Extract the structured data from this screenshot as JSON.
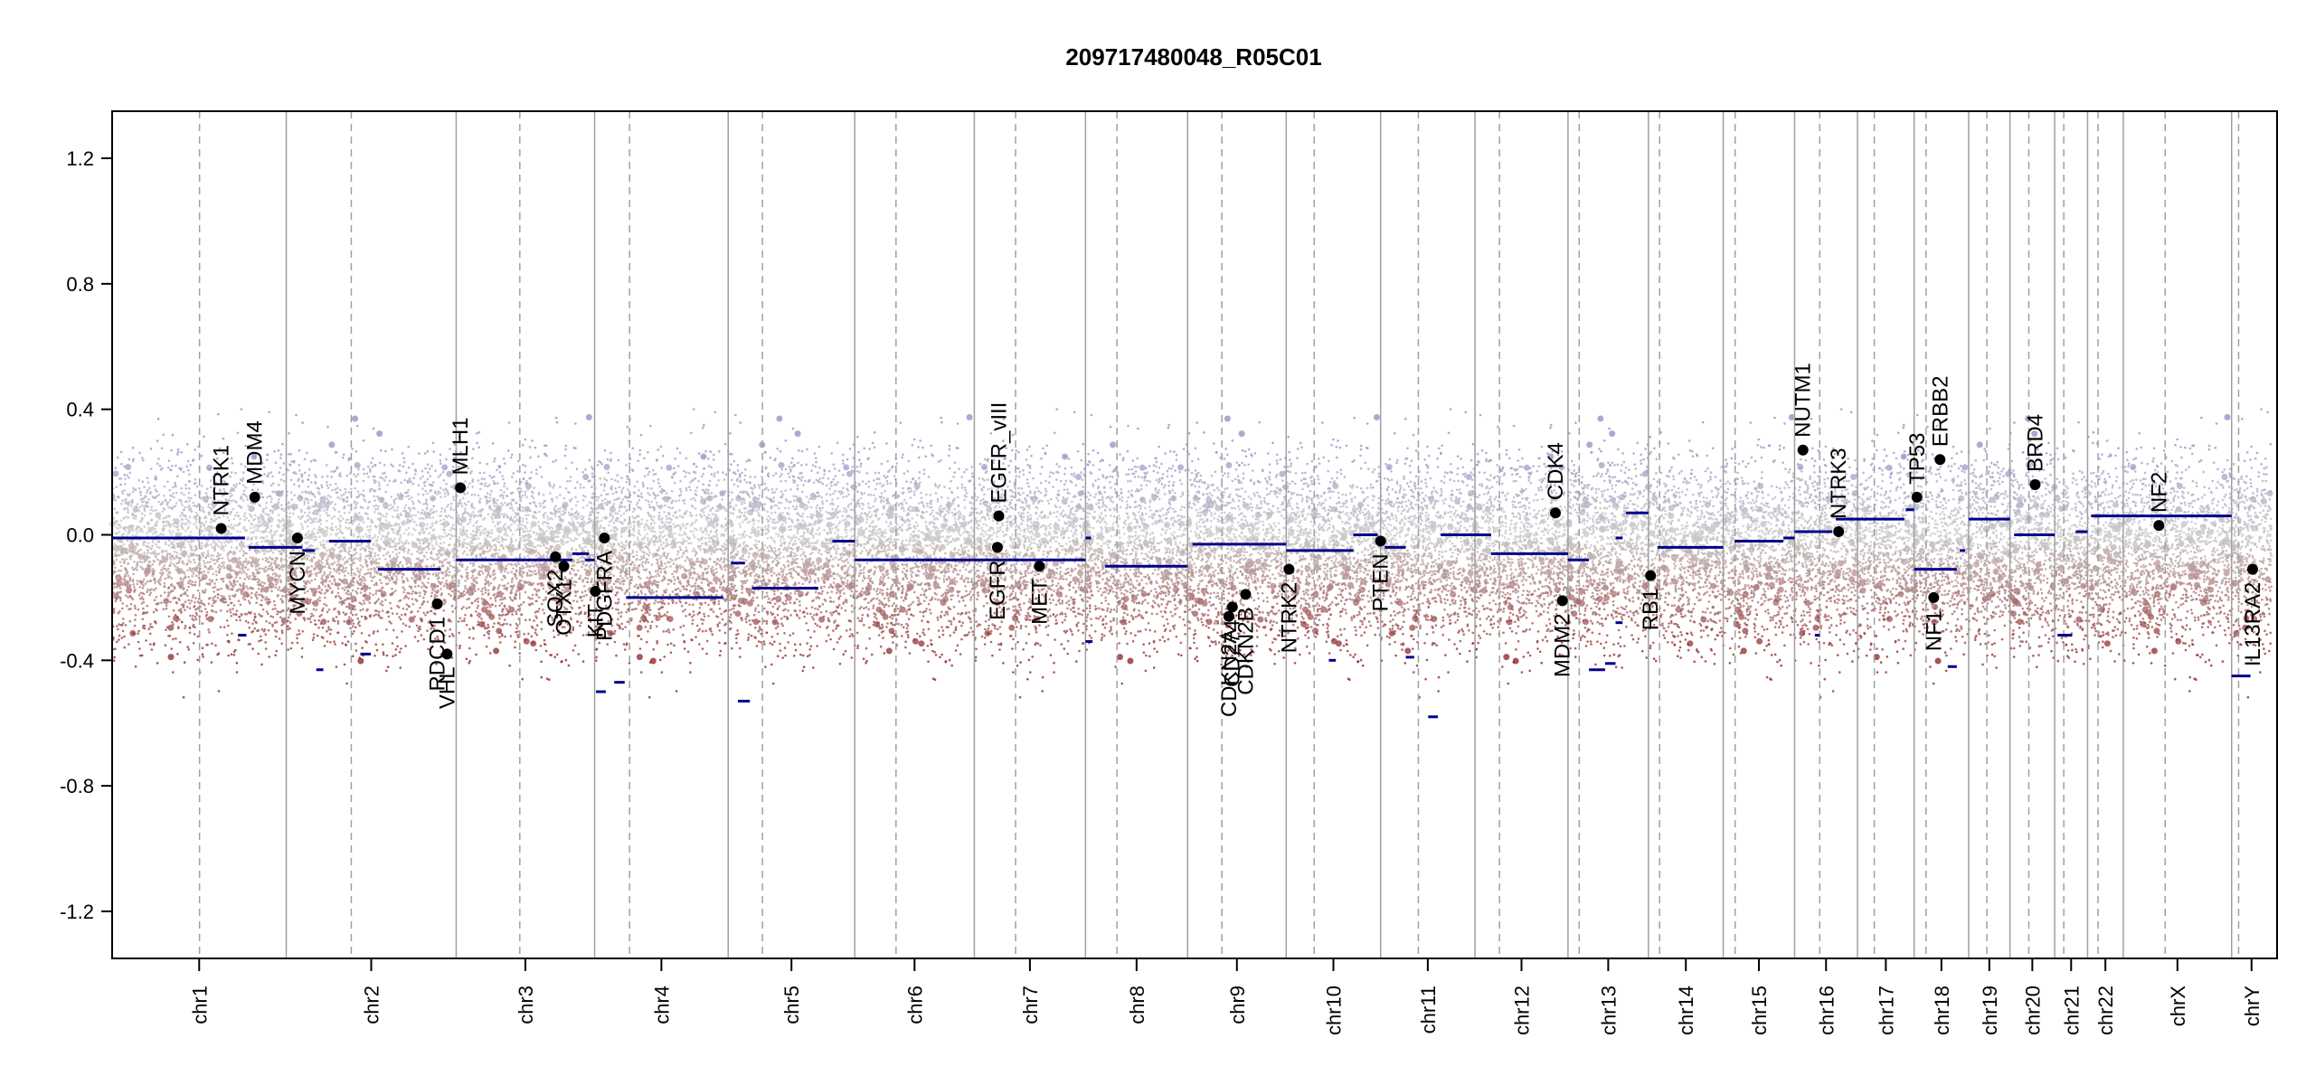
{
  "chart_data": {
    "type": "scatter",
    "title": "209717480048_R05C01",
    "xlabel": "",
    "ylabel": "",
    "ylim": [
      -1.35,
      1.35
    ],
    "yticks": [
      1.2,
      0.8,
      0.4,
      0.0,
      -0.4,
      -0.8,
      -1.2
    ],
    "ytick_labels": [
      "1.2",
      "0.8",
      "0.4",
      "0.0",
      "-0.4",
      "-0.8",
      "-1.2"
    ],
    "xlim": [
      0,
      3096
    ],
    "colors": {
      "gain": "#8c8cc4",
      "neutral": "#c8c8c8",
      "loss": "#8b1a1a",
      "segment": "#00008b",
      "marker": "#000000",
      "boundary": "#a0a0a0"
    },
    "chromosomes": [
      {
        "name": "chr1",
        "start": 0,
        "end": 249,
        "centromere": 125
      },
      {
        "name": "chr2",
        "start": 249,
        "end": 492,
        "centromere": 342
      },
      {
        "name": "chr3",
        "start": 492,
        "end": 690,
        "centromere": 583
      },
      {
        "name": "chr4",
        "start": 690,
        "end": 881,
        "centromere": 740
      },
      {
        "name": "chr5",
        "start": 881,
        "end": 1062,
        "centromere": 930
      },
      {
        "name": "chr6",
        "start": 1062,
        "end": 1233,
        "centromere": 1121
      },
      {
        "name": "chr7",
        "start": 1233,
        "end": 1392,
        "centromere": 1292
      },
      {
        "name": "chr8",
        "start": 1392,
        "end": 1538,
        "centromere": 1437
      },
      {
        "name": "chr9",
        "start": 1538,
        "end": 1679,
        "centromere": 1587
      },
      {
        "name": "chr10",
        "start": 1679,
        "end": 1814,
        "centromere": 1719
      },
      {
        "name": "chr11",
        "start": 1814,
        "end": 1949,
        "centromere": 1868
      },
      {
        "name": "chr12",
        "start": 1949,
        "end": 2082,
        "centromere": 1984
      },
      {
        "name": "chr13",
        "start": 2082,
        "end": 2197,
        "centromere": 2098
      },
      {
        "name": "chr14",
        "start": 2197,
        "end": 2304,
        "centromere": 2213
      },
      {
        "name": "chr15",
        "start": 2304,
        "end": 2406,
        "centromere": 2321
      },
      {
        "name": "chr16",
        "start": 2406,
        "end": 2496,
        "centromere": 2442
      },
      {
        "name": "chr17",
        "start": 2496,
        "end": 2577,
        "centromere": 2520
      },
      {
        "name": "chr18",
        "start": 2577,
        "end": 2655,
        "centromere": 2594
      },
      {
        "name": "chr19",
        "start": 2655,
        "end": 2714,
        "centromere": 2681
      },
      {
        "name": "chr20",
        "start": 2714,
        "end": 2778,
        "centromere": 2741
      },
      {
        "name": "chr21",
        "start": 2778,
        "end": 2825,
        "centromere": 2791
      },
      {
        "name": "chr22",
        "start": 2825,
        "end": 2876,
        "centromere": 2840
      },
      {
        "name": "chrX",
        "start": 2876,
        "end": 3031,
        "centromere": 2936
      },
      {
        "name": "chrY",
        "start": 3031,
        "end": 3088,
        "centromere": 3041
      }
    ],
    "segments": [
      {
        "x0": 0,
        "x1": 190,
        "y": -0.01
      },
      {
        "x0": 180,
        "x1": 192,
        "y": -0.32
      },
      {
        "x0": 195,
        "x1": 249,
        "y": -0.04
      },
      {
        "x0": 249,
        "x1": 272,
        "y": -0.04
      },
      {
        "x0": 272,
        "x1": 290,
        "y": -0.05
      },
      {
        "x0": 292,
        "x1": 302,
        "y": -0.43
      },
      {
        "x0": 310,
        "x1": 370,
        "y": -0.02
      },
      {
        "x0": 355,
        "x1": 370,
        "y": -0.38
      },
      {
        "x0": 380,
        "x1": 470,
        "y": -0.11
      },
      {
        "x0": 492,
        "x1": 658,
        "y": -0.08
      },
      {
        "x0": 658,
        "x1": 682,
        "y": -0.06
      },
      {
        "x0": 676,
        "x1": 690,
        "y": -0.08
      },
      {
        "x0": 692,
        "x1": 706,
        "y": -0.5
      },
      {
        "x0": 718,
        "x1": 733,
        "y": -0.47
      },
      {
        "x0": 735,
        "x1": 874,
        "y": -0.2
      },
      {
        "x0": 885,
        "x1": 905,
        "y": -0.09
      },
      {
        "x0": 895,
        "x1": 912,
        "y": -0.53
      },
      {
        "x0": 915,
        "x1": 1010,
        "y": -0.17
      },
      {
        "x0": 1030,
        "x1": 1062,
        "y": -0.02
      },
      {
        "x0": 1062,
        "x1": 1392,
        "y": -0.08
      },
      {
        "x0": 1392,
        "x1": 1400,
        "y": -0.01
      },
      {
        "x0": 1392,
        "x1": 1402,
        "y": -0.34
      },
      {
        "x0": 1420,
        "x1": 1538,
        "y": -0.1
      },
      {
        "x0": 1545,
        "x1": 1679,
        "y": -0.03
      },
      {
        "x0": 1679,
        "x1": 1775,
        "y": -0.05
      },
      {
        "x0": 1740,
        "x1": 1750,
        "y": -0.4
      },
      {
        "x0": 1775,
        "x1": 1810,
        "y": 0.0
      },
      {
        "x0": 1820,
        "x1": 1850,
        "y": -0.04
      },
      {
        "x0": 1850,
        "x1": 1862,
        "y": -0.39
      },
      {
        "x0": 1882,
        "x1": 1896,
        "y": -0.58
      },
      {
        "x0": 1900,
        "x1": 1972,
        "y": 0.0
      },
      {
        "x0": 1972,
        "x1": 2082,
        "y": -0.06
      },
      {
        "x0": 2082,
        "x1": 2112,
        "y": -0.08
      },
      {
        "x0": 2112,
        "x1": 2135,
        "y": -0.43
      },
      {
        "x0": 2135,
        "x1": 2150,
        "y": -0.41
      },
      {
        "x0": 2150,
        "x1": 2160,
        "y": -0.28
      },
      {
        "x0": 2150,
        "x1": 2160,
        "y": -0.01
      },
      {
        "x0": 2165,
        "x1": 2197,
        "y": 0.07
      },
      {
        "x0": 2210,
        "x1": 2304,
        "y": -0.04
      },
      {
        "x0": 2320,
        "x1": 2390,
        "y": -0.02
      },
      {
        "x0": 2390,
        "x1": 2406,
        "y": -0.01
      },
      {
        "x0": 2406,
        "x1": 2460,
        "y": 0.01
      },
      {
        "x0": 2435,
        "x1": 2442,
        "y": -0.32
      },
      {
        "x0": 2465,
        "x1": 2490,
        "y": 0.05
      },
      {
        "x0": 2490,
        "x1": 2563,
        "y": 0.05
      },
      {
        "x0": 2565,
        "x1": 2577,
        "y": 0.08
      },
      {
        "x0": 2577,
        "x1": 2638,
        "y": -0.11
      },
      {
        "x0": 2625,
        "x1": 2638,
        "y": -0.42
      },
      {
        "x0": 2642,
        "x1": 2650,
        "y": -0.05
      },
      {
        "x0": 2655,
        "x1": 2714,
        "y": 0.05
      },
      {
        "x0": 2720,
        "x1": 2778,
        "y": 0.0
      },
      {
        "x0": 2782,
        "x1": 2803,
        "y": -0.32
      },
      {
        "x0": 2808,
        "x1": 2825,
        "y": 0.01
      },
      {
        "x0": 2830,
        "x1": 3031,
        "y": 0.06
      },
      {
        "x0": 3031,
        "x1": 3058,
        "y": -0.45
      }
    ],
    "genes": [
      {
        "name": "NTRK1",
        "x": 156,
        "y": 0.02
      },
      {
        "name": "MDM4",
        "x": 204,
        "y": 0.12
      },
      {
        "name": "MYCN",
        "x": 265,
        "y": -0.01
      },
      {
        "name": "RDCD1",
        "x": 465,
        "y": -0.22
      },
      {
        "name": "VHL",
        "x": 479,
        "y": -0.38
      },
      {
        "name": "MLH1",
        "x": 498,
        "y": 0.15
      },
      {
        "name": "SOX2",
        "x": 634,
        "y": -0.07
      },
      {
        "name": "OTX1",
        "x": 646,
        "y": -0.1
      },
      {
        "name": "KIT",
        "x": 691,
        "y": -0.18
      },
      {
        "name": "PDGFRA",
        "x": 704,
        "y": -0.01
      },
      {
        "name": "EGFR_vIII",
        "x": 1268,
        "y": 0.06
      },
      {
        "name": "EGFR",
        "x": 1266,
        "y": -0.04
      },
      {
        "name": "MET",
        "x": 1326,
        "y": -0.1
      },
      {
        "name": "CD274",
        "x": 1602,
        "y": -0.23
      },
      {
        "name": "CDKN2A",
        "x": 1597,
        "y": -0.26
      },
      {
        "name": "CDKN2B",
        "x": 1621,
        "y": -0.19
      },
      {
        "name": "NTRK2",
        "x": 1683,
        "y": -0.11
      },
      {
        "name": "PTEN",
        "x": 1814,
        "y": -0.02
      },
      {
        "name": "CDK4",
        "x": 2064,
        "y": 0.07
      },
      {
        "name": "MDM2",
        "x": 2074,
        "y": -0.21
      },
      {
        "name": "RB1",
        "x": 2200,
        "y": -0.13
      },
      {
        "name": "NUTM1",
        "x": 2418,
        "y": 0.27
      },
      {
        "name": "NTRK3",
        "x": 2469,
        "y": 0.01
      },
      {
        "name": "TP53",
        "x": 2581,
        "y": 0.12
      },
      {
        "name": "ERBB2",
        "x": 2614,
        "y": 0.24
      },
      {
        "name": "NF1",
        "x": 2605,
        "y": -0.2
      },
      {
        "name": "BRD4",
        "x": 2750,
        "y": 0.16
      },
      {
        "name": "NF2",
        "x": 2927,
        "y": 0.03
      },
      {
        "name": "IL13RA2",
        "x": 3061,
        "y": -0.11
      }
    ]
  }
}
